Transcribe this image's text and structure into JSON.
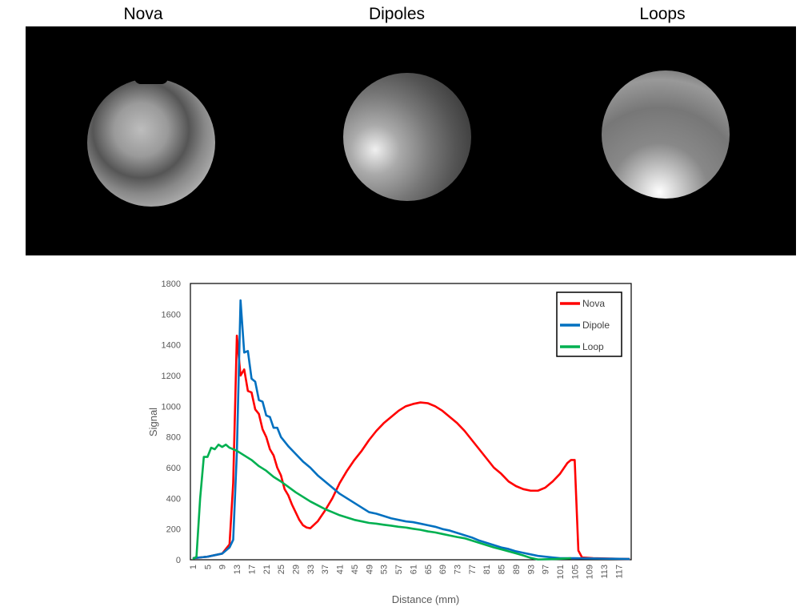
{
  "panel_titles": [
    "Nova",
    "Dipoles",
    "Loops"
  ],
  "chart_data": {
    "type": "line",
    "title": "",
    "xlabel": "Distance (mm)",
    "ylabel": "Signal",
    "ylim": [
      0,
      1800
    ],
    "yticks": [
      0,
      200,
      400,
      600,
      800,
      1000,
      1200,
      1400,
      1600,
      1800
    ],
    "xlim": [
      1,
      120
    ],
    "xticks": [
      1,
      5,
      9,
      13,
      17,
      21,
      25,
      29,
      33,
      37,
      41,
      45,
      49,
      53,
      57,
      61,
      65,
      69,
      73,
      77,
      81,
      85,
      89,
      93,
      97,
      101,
      105,
      109,
      113,
      117
    ],
    "legend_position": "top-right",
    "series": [
      {
        "name": "Nova",
        "color": "#ff0000",
        "points": [
          [
            1,
            10
          ],
          [
            5,
            20
          ],
          [
            9,
            40
          ],
          [
            11,
            100
          ],
          [
            12,
            500
          ],
          [
            13,
            1460
          ],
          [
            14,
            1200
          ],
          [
            15,
            1240
          ],
          [
            16,
            1100
          ],
          [
            17,
            1090
          ],
          [
            18,
            980
          ],
          [
            19,
            950
          ],
          [
            20,
            850
          ],
          [
            21,
            800
          ],
          [
            22,
            720
          ],
          [
            23,
            680
          ],
          [
            24,
            600
          ],
          [
            25,
            550
          ],
          [
            26,
            460
          ],
          [
            27,
            420
          ],
          [
            28,
            360
          ],
          [
            29,
            310
          ],
          [
            30,
            260
          ],
          [
            31,
            225
          ],
          [
            32,
            210
          ],
          [
            33,
            205
          ],
          [
            35,
            250
          ],
          [
            37,
            320
          ],
          [
            39,
            400
          ],
          [
            41,
            500
          ],
          [
            43,
            580
          ],
          [
            45,
            650
          ],
          [
            47,
            710
          ],
          [
            49,
            780
          ],
          [
            51,
            840
          ],
          [
            53,
            890
          ],
          [
            55,
            930
          ],
          [
            57,
            970
          ],
          [
            59,
            1000
          ],
          [
            61,
            1015
          ],
          [
            63,
            1025
          ],
          [
            65,
            1020
          ],
          [
            67,
            1000
          ],
          [
            69,
            970
          ],
          [
            71,
            930
          ],
          [
            73,
            890
          ],
          [
            75,
            840
          ],
          [
            77,
            780
          ],
          [
            79,
            720
          ],
          [
            81,
            660
          ],
          [
            83,
            600
          ],
          [
            85,
            560
          ],
          [
            87,
            510
          ],
          [
            89,
            480
          ],
          [
            91,
            460
          ],
          [
            93,
            450
          ],
          [
            95,
            450
          ],
          [
            97,
            470
          ],
          [
            99,
            510
          ],
          [
            101,
            560
          ],
          [
            103,
            630
          ],
          [
            104,
            650
          ],
          [
            105,
            650
          ],
          [
            106,
            60
          ],
          [
            107,
            15
          ],
          [
            110,
            10
          ],
          [
            120,
            5
          ]
        ]
      },
      {
        "name": "Dipole",
        "color": "#0070c0",
        "points": [
          [
            1,
            10
          ],
          [
            5,
            20
          ],
          [
            9,
            40
          ],
          [
            11,
            80
          ],
          [
            12,
            130
          ],
          [
            13,
            700
          ],
          [
            14,
            1690
          ],
          [
            15,
            1350
          ],
          [
            16,
            1360
          ],
          [
            17,
            1180
          ],
          [
            18,
            1160
          ],
          [
            19,
            1040
          ],
          [
            20,
            1030
          ],
          [
            21,
            940
          ],
          [
            22,
            930
          ],
          [
            23,
            860
          ],
          [
            24,
            860
          ],
          [
            25,
            800
          ],
          [
            27,
            740
          ],
          [
            29,
            690
          ],
          [
            31,
            640
          ],
          [
            33,
            600
          ],
          [
            35,
            550
          ],
          [
            37,
            510
          ],
          [
            39,
            470
          ],
          [
            41,
            430
          ],
          [
            43,
            400
          ],
          [
            45,
            370
          ],
          [
            47,
            340
          ],
          [
            49,
            310
          ],
          [
            51,
            300
          ],
          [
            53,
            285
          ],
          [
            55,
            270
          ],
          [
            57,
            260
          ],
          [
            59,
            250
          ],
          [
            61,
            245
          ],
          [
            63,
            235
          ],
          [
            65,
            225
          ],
          [
            67,
            215
          ],
          [
            69,
            200
          ],
          [
            71,
            190
          ],
          [
            73,
            175
          ],
          [
            75,
            160
          ],
          [
            77,
            145
          ],
          [
            79,
            125
          ],
          [
            81,
            110
          ],
          [
            83,
            95
          ],
          [
            85,
            80
          ],
          [
            87,
            70
          ],
          [
            89,
            55
          ],
          [
            91,
            45
          ],
          [
            93,
            35
          ],
          [
            95,
            25
          ],
          [
            97,
            20
          ],
          [
            99,
            15
          ],
          [
            101,
            10
          ],
          [
            105,
            10
          ],
          [
            110,
            8
          ],
          [
            120,
            5
          ]
        ]
      },
      {
        "name": "Loop",
        "color": "#00b050",
        "points": [
          [
            1,
            5
          ],
          [
            2,
            20
          ],
          [
            3,
            400
          ],
          [
            4,
            670
          ],
          [
            5,
            670
          ],
          [
            6,
            730
          ],
          [
            7,
            720
          ],
          [
            8,
            750
          ],
          [
            9,
            735
          ],
          [
            10,
            750
          ],
          [
            11,
            730
          ],
          [
            13,
            710
          ],
          [
            15,
            680
          ],
          [
            17,
            650
          ],
          [
            19,
            610
          ],
          [
            21,
            580
          ],
          [
            23,
            540
          ],
          [
            25,
            510
          ],
          [
            27,
            475
          ],
          [
            29,
            440
          ],
          [
            31,
            410
          ],
          [
            33,
            380
          ],
          [
            35,
            355
          ],
          [
            37,
            330
          ],
          [
            39,
            310
          ],
          [
            41,
            290
          ],
          [
            43,
            275
          ],
          [
            45,
            260
          ],
          [
            47,
            250
          ],
          [
            49,
            240
          ],
          [
            51,
            235
          ],
          [
            53,
            228
          ],
          [
            55,
            222
          ],
          [
            57,
            215
          ],
          [
            59,
            210
          ],
          [
            61,
            202
          ],
          [
            63,
            195
          ],
          [
            65,
            185
          ],
          [
            67,
            178
          ],
          [
            69,
            168
          ],
          [
            71,
            158
          ],
          [
            73,
            148
          ],
          [
            75,
            140
          ],
          [
            77,
            125
          ],
          [
            79,
            110
          ],
          [
            81,
            95
          ],
          [
            83,
            80
          ],
          [
            85,
            68
          ],
          [
            87,
            55
          ],
          [
            89,
            42
          ],
          [
            91,
            28
          ],
          [
            93,
            12
          ],
          [
            95,
            2
          ],
          [
            100,
            5
          ],
          [
            104,
            10
          ]
        ]
      }
    ]
  }
}
